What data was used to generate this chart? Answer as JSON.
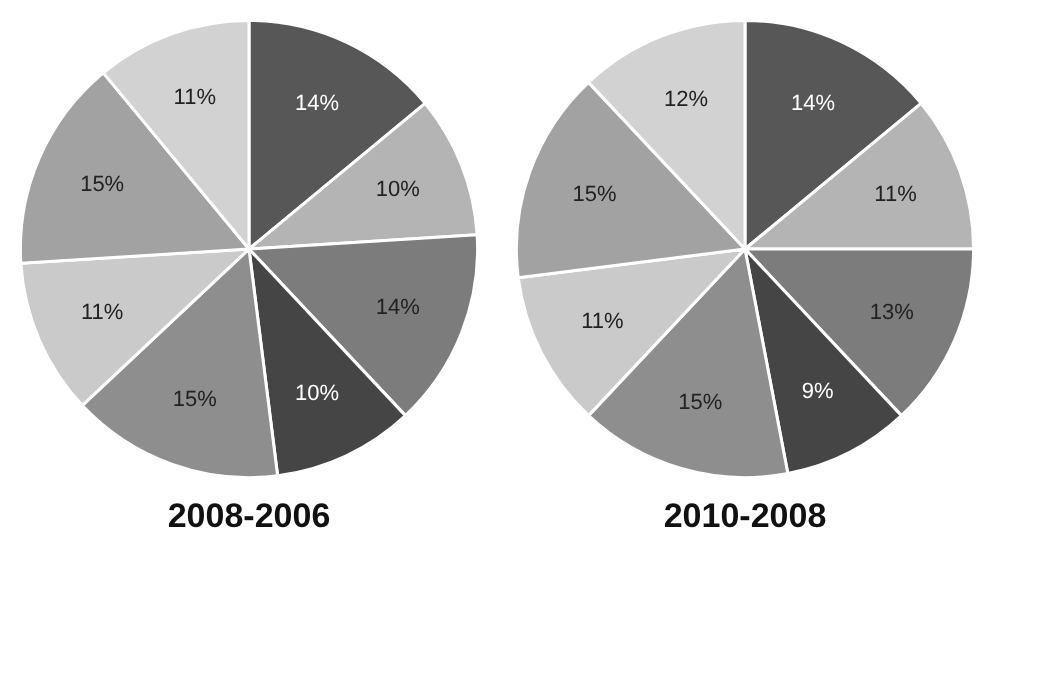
{
  "chart_data": [
    {
      "type": "pie",
      "title": "2008-2006",
      "categories": [
        null,
        null,
        null,
        null,
        null,
        null,
        null,
        null
      ],
      "values": [
        14,
        10,
        14,
        10,
        15,
        11,
        15,
        11
      ],
      "value_labels": [
        "14%",
        "10%",
        "14%",
        "10%",
        "15%",
        "11%",
        "15%",
        "11%"
      ],
      "colors": [
        "#575757",
        "#b4b4b4",
        "#7c7c7c",
        "#454545",
        "#8e8e8e",
        "#cacaca",
        "#a2a2a2",
        "#d2d2d2"
      ]
    },
    {
      "type": "pie",
      "title": "2010-2008",
      "categories": [
        null,
        null,
        null,
        null,
        null,
        null,
        null,
        null
      ],
      "values": [
        14,
        11,
        13,
        9,
        15,
        11,
        15,
        12
      ],
      "value_labels": [
        "14%",
        "11%",
        "13%",
        "9%",
        "15%",
        "11%",
        "15%",
        "12%"
      ],
      "colors": [
        "#575757",
        "#b4b4b4",
        "#7c7c7c",
        "#454545",
        "#8e8e8e",
        "#cacaca",
        "#a2a2a2",
        "#d2d2d2"
      ]
    }
  ]
}
